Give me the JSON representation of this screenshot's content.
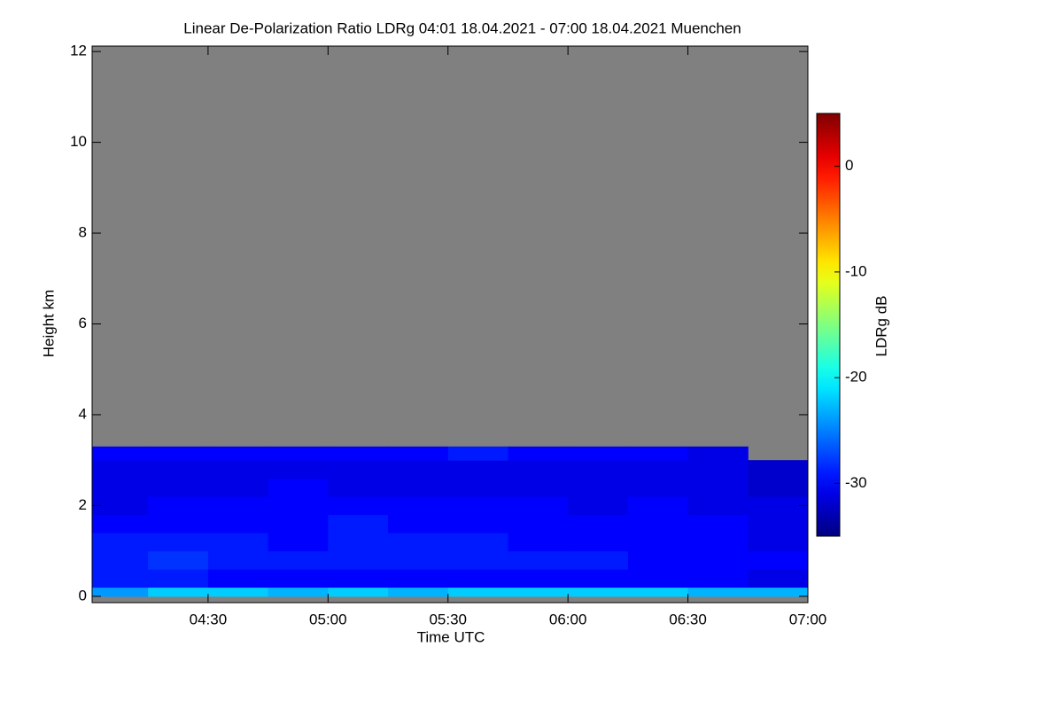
{
  "chart_data": {
    "type": "heatmap",
    "title": "Linear De-Polarization Ratio LDRg   04:01 18.04.2021 - 07:00 18.04.2021 Muenchen",
    "x_label": "Time UTC",
    "y_label": "Height km",
    "colorbar_label": "LDRg dB",
    "xlim": [
      4.0167,
      7.0
    ],
    "xticks": [
      {
        "value": 4.5,
        "label": "04:30"
      },
      {
        "value": 5,
        "label": "05:00"
      },
      {
        "value": 5.5,
        "label": "05:30"
      },
      {
        "value": 6,
        "label": "06:00"
      },
      {
        "value": 6.5,
        "label": "06:30"
      },
      {
        "value": 7,
        "label": "07:00"
      }
    ],
    "ylim": [
      -0.14,
      12.12
    ],
    "yticks": [
      0,
      2,
      4,
      6,
      8,
      10,
      12
    ],
    "zlim": [
      -35,
      5
    ],
    "zticks": [
      0,
      -10,
      -20,
      -30
    ],
    "colormap": "jet",
    "background": "#808080",
    "xbins": [
      4.0167,
      4.25,
      4.5,
      4.75,
      5,
      5.25,
      5.5,
      5.75,
      6,
      6.25,
      6.5,
      6.75,
      7.0
    ],
    "ybins": [
      0,
      0.2,
      0.6,
      1.0,
      1.4,
      1.8,
      2.2,
      2.6,
      3.0,
      3.3
    ],
    "z": [
      [
        -24,
        -22,
        -22,
        -23,
        -22,
        -23,
        -22,
        -22,
        -22,
        -22,
        -23,
        -23
      ],
      [
        -29,
        -29,
        -30,
        -30,
        -30,
        -30,
        -30,
        -30,
        -30,
        -30,
        -30,
        -31
      ],
      [
        -29,
        -28,
        -29,
        -29,
        -29,
        -29,
        -29,
        -29,
        -29,
        -30,
        -30,
        -30
      ],
      [
        -29,
        -29,
        -29,
        -30,
        -29,
        -29,
        -29,
        -30,
        -30,
        -30,
        -30,
        -31
      ],
      [
        -30,
        -30,
        -30,
        -30,
        -29,
        -30,
        -30,
        -30,
        -30,
        -30,
        -30,
        -31
      ],
      [
        -31,
        -30,
        -30,
        -30,
        -30,
        -30,
        -30,
        -30,
        -31,
        -30,
        -31,
        -31
      ],
      [
        -31,
        -31,
        -31,
        -30,
        -31,
        -31,
        -31,
        -31,
        -31,
        -31,
        -31,
        -32
      ],
      [
        -31,
        -31,
        -31,
        -31,
        -31,
        -31,
        -31,
        -31,
        -31,
        -31,
        -31,
        -32
      ],
      [
        -30,
        -30,
        -30,
        -30,
        -30,
        -30,
        -29,
        -30,
        -30,
        -30,
        -31,
        null
      ]
    ]
  }
}
